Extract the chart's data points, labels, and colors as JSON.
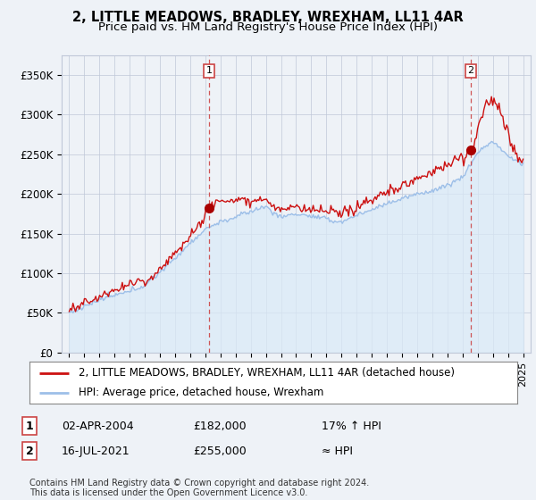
{
  "title": "2, LITTLE MEADOWS, BRADLEY, WREXHAM, LL11 4AR",
  "subtitle": "Price paid vs. HM Land Registry's House Price Index (HPI)",
  "ylabel_ticks": [
    "£0",
    "£50K",
    "£100K",
    "£150K",
    "£200K",
    "£250K",
    "£300K",
    "£350K"
  ],
  "ytick_values": [
    0,
    50000,
    100000,
    150000,
    200000,
    250000,
    300000,
    350000
  ],
  "ylim": [
    0,
    375000
  ],
  "xlim_start": 1994.5,
  "xlim_end": 2025.5,
  "marker1_x": 2004.25,
  "marker1_y": 182000,
  "marker1_label": "1",
  "marker2_x": 2021.54,
  "marker2_y": 255000,
  "marker2_label": "2",
  "legend_line1": "2, LITTLE MEADOWS, BRADLEY, WREXHAM, LL11 4AR (detached house)",
  "legend_line2": "HPI: Average price, detached house, Wrexham",
  "table_row1_num": "1",
  "table_row1_date": "02-APR-2004",
  "table_row1_price": "£182,000",
  "table_row1_hpi": "17% ↑ HPI",
  "table_row2_num": "2",
  "table_row2_date": "16-JUL-2021",
  "table_row2_price": "£255,000",
  "table_row2_hpi": "≈ HPI",
  "footnote": "Contains HM Land Registry data © Crown copyright and database right 2024.\nThis data is licensed under the Open Government Licence v3.0.",
  "hpi_color": "#9dbfe8",
  "hpi_fill_color": "#daeaf7",
  "price_color": "#cc1111",
  "marker_color": "#aa0000",
  "dashed_line_color": "#cc4444",
  "background_color": "#eef2f7",
  "plot_bg_color": "#eef2f7",
  "grid_color": "#c0c8d8",
  "title_fontsize": 10.5,
  "subtitle_fontsize": 9.5,
  "tick_fontsize": 8.5,
  "legend_fontsize": 8.5,
  "table_fontsize": 9,
  "footnote_fontsize": 7
}
